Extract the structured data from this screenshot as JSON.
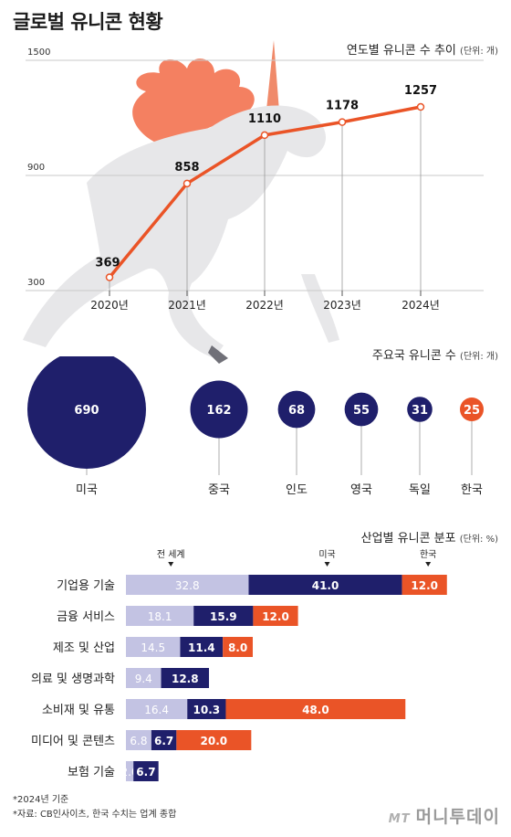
{
  "page_title": "글로벌 유니콘 현황",
  "chart_data": [
    {
      "type": "line",
      "title": "연도별 유니콘 수 추이",
      "unit": "(단위: 개)",
      "x": [
        "2020년",
        "2021년",
        "2022년",
        "2023년",
        "2024년"
      ],
      "y": [
        369,
        858,
        1110,
        1178,
        1257
      ],
      "data_labels": [
        "369",
        "858",
        "1110",
        "1178",
        "1257"
      ],
      "yticks": [
        "1500",
        "900",
        "300"
      ],
      "ylim": [
        300,
        1500
      ],
      "line_color": "#ea5427"
    },
    {
      "type": "bubble",
      "title": "주요국 유니콘 수",
      "unit": "(단위: 개)",
      "categories": [
        "미국",
        "중국",
        "인도",
        "영국",
        "독일",
        "한국"
      ],
      "values": [
        690,
        162,
        68,
        55,
        31,
        25
      ],
      "data_labels": [
        "690",
        "162",
        "68",
        "55",
        "31",
        "25"
      ],
      "colors": [
        "#1f1f6b",
        "#1f1f6b",
        "#1f1f6b",
        "#1f1f6b",
        "#1f1f6b",
        "#ea5427"
      ]
    },
    {
      "type": "bar",
      "orientation": "horizontal",
      "stacked": true,
      "title": "산업별 유니콘 분포",
      "unit": "(단위: %)",
      "categories": [
        "기업용 기술",
        "금융 서비스",
        "제조 및 산업",
        "의료 및 생명과학",
        "소비재 및 유통",
        "미디어 및 콘텐츠",
        "보험 기술"
      ],
      "legend": [
        "전 세계",
        "미국",
        "한국"
      ],
      "series": [
        {
          "name": "전 세계",
          "color": "#c3c3e3",
          "values": [
            32.8,
            18.1,
            14.5,
            9.4,
            16.4,
            6.8,
            2.0
          ],
          "labels": [
            "32.8",
            "18.1",
            "14.5",
            "9.4",
            "16.4",
            "6.8",
            "2.0"
          ]
        },
        {
          "name": "미국",
          "color": "#1f1f6b",
          "values": [
            41.0,
            15.9,
            11.4,
            12.8,
            10.3,
            6.7,
            6.7
          ],
          "labels": [
            "41.0",
            "15.9",
            "11.4",
            "12.8",
            "10.3",
            "6.7",
            "6.7"
          ]
        },
        {
          "name": "한국",
          "color": "#ea5427",
          "values": [
            12.0,
            12.0,
            8.0,
            0,
            48.0,
            20.0,
            0
          ],
          "labels": [
            "12.0",
            "12.0",
            "8.0",
            "",
            "48.0",
            "20.0",
            ""
          ]
        }
      ]
    }
  ],
  "footnotes": [
    "*2024년 기준",
    "*자료: CB인사이츠, 한국 수치는 업계 종합"
  ],
  "brand": {
    "mark": "MT",
    "name": "머니투데이"
  }
}
